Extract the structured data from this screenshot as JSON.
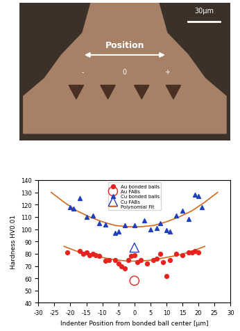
{
  "micrograph": {
    "scale_bar": "30μm",
    "label": "Position",
    "marks": [
      "-",
      "0",
      "+"
    ]
  },
  "chart_data": {
    "type": "scatter",
    "x_label": "Indenter Position from bonded ball center [μm]",
    "y_label": "Hardness HV0.01",
    "xlim": [
      -30,
      30
    ],
    "xticks": [
      -30,
      -25,
      -20,
      -15,
      -10,
      -5,
      0,
      5,
      10,
      15,
      20,
      25,
      30
    ],
    "ylim": [
      40,
      140
    ],
    "yticks": [
      40,
      50,
      60,
      70,
      80,
      90,
      100,
      110,
      120,
      130,
      140
    ],
    "legend": "upper center",
    "series": [
      {
        "name": "Au bonded balls",
        "type": "scatter",
        "color": "#e8231f",
        "marker": "circle",
        "x": [
          -21,
          -17,
          -16,
          -15,
          -14,
          -13,
          -12,
          -11,
          -9,
          -8,
          -6,
          -5,
          -4,
          -3,
          -2,
          -1,
          0,
          1,
          2,
          4,
          6,
          7,
          8,
          9,
          10,
          11,
          13,
          15,
          17,
          18,
          19,
          20
        ],
        "values": [
          81,
          82,
          80,
          81,
          79,
          80,
          79,
          78,
          74,
          75,
          75,
          72,
          70,
          68,
          75,
          78,
          79,
          73,
          75,
          72,
          75,
          76,
          80,
          73,
          62,
          75,
          80,
          79,
          81,
          81,
          82,
          81
        ]
      },
      {
        "name": "Au FABs",
        "type": "scatter",
        "color": "#e8231f",
        "marker": "open_circle",
        "x": [
          0
        ],
        "values": [
          58
        ]
      },
      {
        "name": "Cu bonded balls",
        "type": "scatter",
        "color": "#1f3fbf",
        "marker": "triangle",
        "x": [
          -20,
          -19,
          -17,
          -15,
          -13,
          -11,
          -9,
          -6,
          -5,
          -3,
          0,
          3,
          5,
          7,
          8,
          10,
          11,
          13,
          15,
          17,
          19,
          20,
          21
        ],
        "values": [
          118,
          117,
          125,
          110,
          111,
          105,
          104,
          97,
          98,
          103,
          103,
          107,
          100,
          101,
          105,
          99,
          98,
          111,
          115,
          108,
          128,
          127,
          118
        ]
      },
      {
        "name": "Cu FABs",
        "type": "scatter",
        "color": "#1f3fbf",
        "marker": "open_triangle",
        "x": [
          0
        ],
        "values": [
          85
        ]
      },
      {
        "name": "Polynomial Fit",
        "type": "line",
        "color": "#d2691e",
        "line_style": "solid",
        "x": [
          -26,
          -22,
          -18,
          -14,
          -10,
          -6,
          -2,
          0,
          2,
          6,
          10,
          14,
          18,
          22,
          26
        ],
        "values": [
          130,
          122,
          115,
          110,
          106,
          103,
          102,
          102,
          102,
          103,
          106,
          110,
          115,
          122,
          130
        ]
      },
      {
        "name": "Polynomial Fit",
        "type": "line",
        "color": "#d2691e",
        "line_style": "solid",
        "x": [
          -22,
          -18,
          -14,
          -10,
          -6,
          -2,
          0,
          2,
          6,
          10,
          14,
          18,
          22
        ],
        "values": [
          86,
          82,
          79,
          77,
          75,
          74,
          74,
          74,
          75,
          77,
          79,
          82,
          86
        ]
      }
    ]
  }
}
